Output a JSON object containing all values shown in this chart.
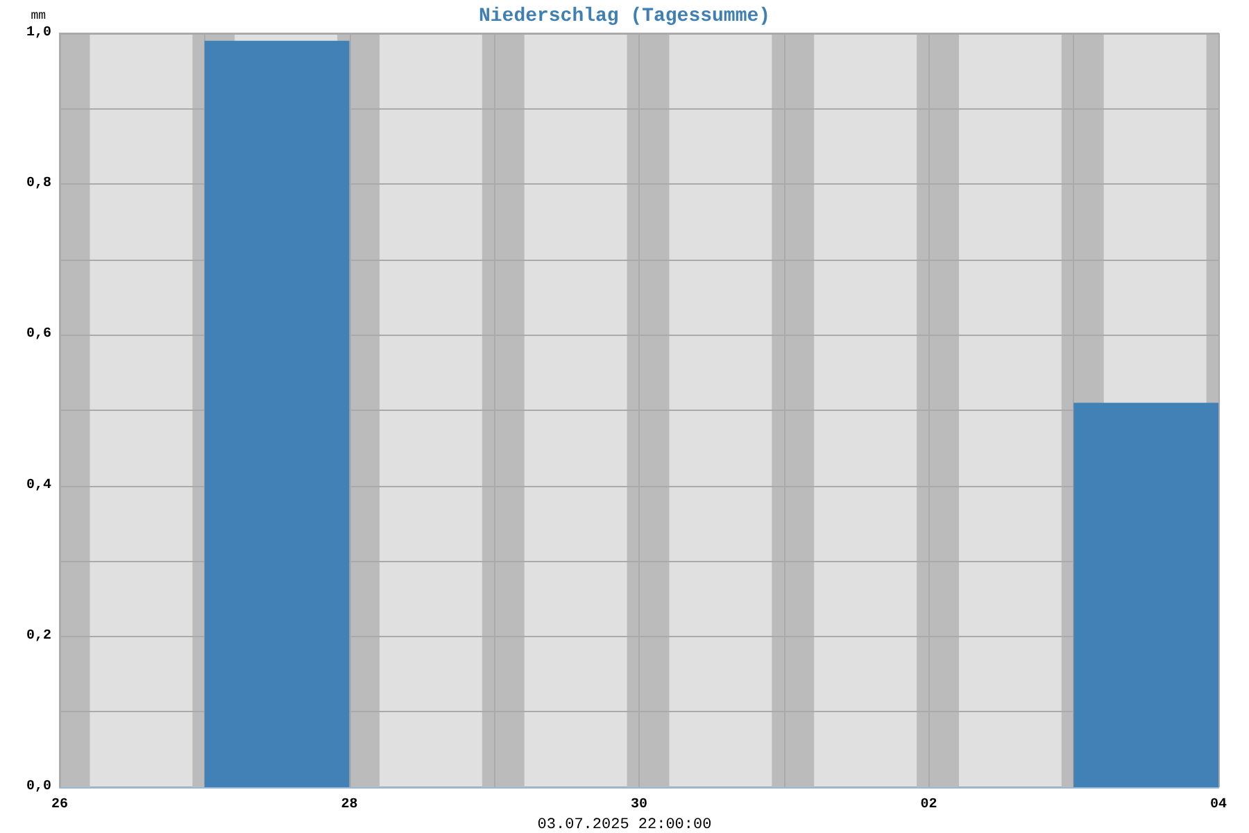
{
  "chart_data": {
    "type": "bar",
    "title": "Niederschlag (Tagessumme)",
    "ylabel": "mm",
    "x": [
      "2025-06-26T12:00",
      "2025-06-27T12:00",
      "2025-06-28T12:00",
      "2025-06-29T12:00",
      "2025-06-30T12:00",
      "2025-07-01T12:00",
      "2025-07-02T12:00",
      "2025-07-03T12:00"
    ],
    "values": [
      0,
      0.99,
      0,
      0,
      0,
      0,
      0,
      0.51
    ],
    "color": "#4281b5",
    "xlim": [
      "2025-06-26",
      "2025-07-04"
    ],
    "xticks": [
      {
        "value": "2025-06-26",
        "label": "26"
      },
      {
        "value": "2025-06-27",
        "label": null
      },
      {
        "value": "2025-06-28",
        "label": "28"
      },
      {
        "value": "2025-06-29",
        "label": null
      },
      {
        "value": "2025-06-30",
        "label": "30"
      },
      {
        "value": "2025-07-01",
        "label": null
      },
      {
        "value": "2025-07-02",
        "label": "02"
      },
      {
        "value": "2025-07-03",
        "label": null
      },
      {
        "value": "2025-07-04",
        "label": "04"
      }
    ],
    "ylim": [
      0,
      1
    ],
    "yticks": [
      {
        "value": 0,
        "label": "0,0"
      },
      {
        "value": 0.1,
        "label": null
      },
      {
        "value": 0.2,
        "label": "0,2"
      },
      {
        "value": 0.3,
        "label": null
      },
      {
        "value": 0.4,
        "label": "0,4"
      },
      {
        "value": 0.5,
        "label": null
      },
      {
        "value": 0.6,
        "label": "0,6"
      },
      {
        "value": 0.7,
        "label": null
      },
      {
        "value": 0.8,
        "label": "0,8"
      },
      {
        "value": 0.9,
        "label": null
      },
      {
        "value": 1,
        "label": "1,0"
      }
    ],
    "bands": [
      {
        "axis": "x",
        "from": "2025-06-26T00:00",
        "to": "2025-06-26T05:00",
        "color": "#bbbbbb"
      },
      {
        "axis": "x",
        "from": "2025-06-26T22:00",
        "to": "2025-06-27T05:00",
        "color": "#bbbbbb"
      },
      {
        "axis": "x",
        "from": "2025-06-27T22:00",
        "to": "2025-06-28T05:00",
        "color": "#bbbbbb"
      },
      {
        "axis": "x",
        "from": "2025-06-28T22:00",
        "to": "2025-06-29T05:00",
        "color": "#bbbbbb"
      },
      {
        "axis": "x",
        "from": "2025-06-29T22:00",
        "to": "2025-06-30T05:00",
        "color": "#bbbbbb"
      },
      {
        "axis": "x",
        "from": "2025-06-30T22:00",
        "to": "2025-07-01T05:00",
        "color": "#bbbbbb"
      },
      {
        "axis": "x",
        "from": "2025-07-01T22:00",
        "to": "2025-07-02T05:00",
        "color": "#bbbbbb"
      },
      {
        "axis": "x",
        "from": "2025-07-02T22:00",
        "to": "2025-07-03T05:00",
        "color": "#bbbbbb"
      },
      {
        "axis": "x",
        "from": "2025-07-03T22:00",
        "to": "2025-07-04T00:00",
        "color": "#bbbbbb"
      }
    ],
    "grid": true,
    "annotations": [
      "03.07.2025 22:00:00"
    ]
  }
}
